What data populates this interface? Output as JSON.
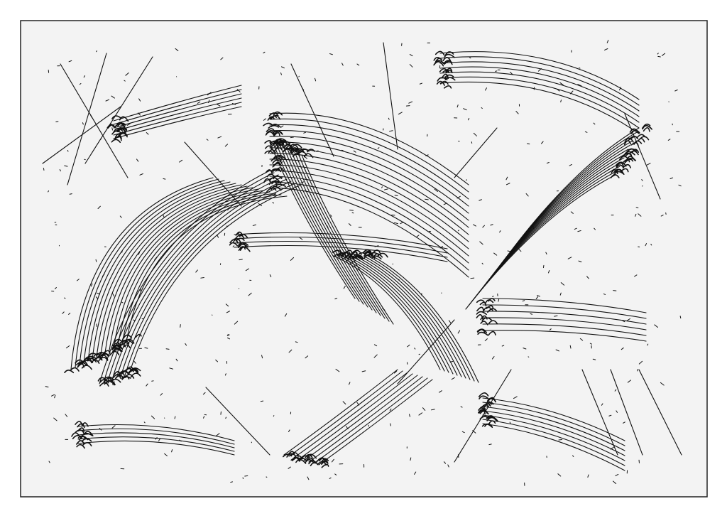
{
  "artwork": {
    "kind": "graphic score drawing",
    "ink_color": "#111111",
    "paper_color": "#f3f3f3",
    "border_color": "#222222"
  }
}
